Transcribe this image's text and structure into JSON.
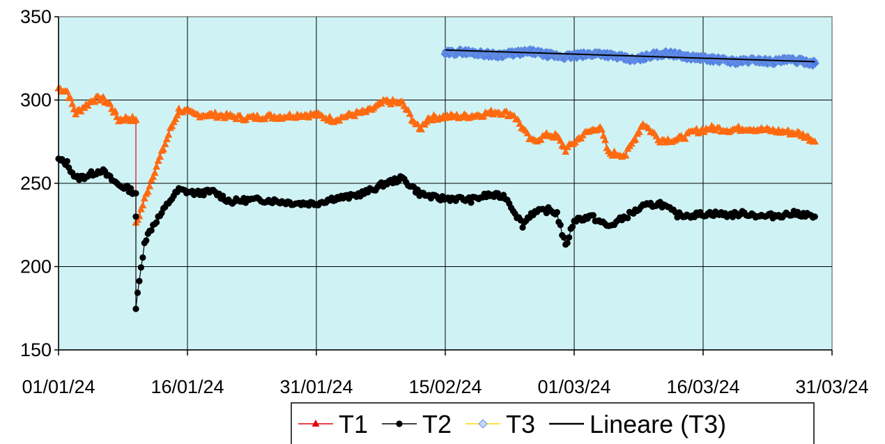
{
  "chart_data": {
    "type": "line",
    "title": "",
    "xlabel": "",
    "ylabel": "",
    "ylim": [
      150,
      350
    ],
    "yticks": [
      150,
      200,
      250,
      300,
      350
    ],
    "x_range": [
      "01/01/24",
      "31/03/24"
    ],
    "xticks": [
      "01/01/24",
      "16/01/24",
      "31/01/24",
      "15/02/24",
      "01/03/24",
      "16/03/24",
      "31/03/24"
    ],
    "grid": true,
    "plot_background": "#cff3f4",
    "legend_position": "bottom",
    "series": [
      {
        "name": "T1",
        "color": "#ff6a10",
        "line_color": "#e8000b",
        "marker": "triangle",
        "x": [
          "01/01/24",
          "02/01/24",
          "03/01/24",
          "04/01/24",
          "05/01/24",
          "06/01/24",
          "07/01/24",
          "08/01/24",
          "09/01/24",
          "10/01/24",
          "10/01/24",
          "10/01/24",
          "11/01/24",
          "12/01/24",
          "13/01/24",
          "14/01/24",
          "15/01/24",
          "17/01/24",
          "19/01/24",
          "21/01/24",
          "23/01/24",
          "25/01/24",
          "27/01/24",
          "29/01/24",
          "31/01/24",
          "02/02/24",
          "04/02/24",
          "06/02/24",
          "08/02/24",
          "10/02/24",
          "12/02/24",
          "13/02/24",
          "15/02/24",
          "17/02/24",
          "19/02/24",
          "21/02/24",
          "23/02/24",
          "25/02/24",
          "27/02/24",
          "28/02/24",
          "29/02/24",
          "02/03/24",
          "04/03/24",
          "05/03/24",
          "07/03/24",
          "09/03/24",
          "11/03/24",
          "13/03/24",
          "15/03/24",
          "17/03/24",
          "19/03/24",
          "21/03/24",
          "23/03/24",
          "25/03/24",
          "27/03/24",
          "28/03/24",
          "29/03/24"
        ],
        "y": [
          307,
          305,
          292,
          296,
          300,
          301,
          297,
          288,
          289,
          288,
          288,
          225,
          240,
          255,
          268,
          282,
          294,
          291,
          291,
          290,
          289,
          290,
          290,
          291,
          291,
          288,
          291,
          293,
          299,
          298,
          282,
          289,
          290,
          290,
          291,
          293,
          291,
          275,
          279,
          278,
          270,
          279,
          284,
          268,
          267,
          286,
          276,
          276,
          281,
          283,
          282,
          283,
          282,
          281,
          280,
          278,
          275
        ]
      },
      {
        "name": "T2",
        "color": "#000000",
        "line_color": "#000000",
        "marker": "dot",
        "x": [
          "01/01/24",
          "02/01/24",
          "03/01/24",
          "04/01/24",
          "05/01/24",
          "06/01/24",
          "07/01/24",
          "08/01/24",
          "09/01/24",
          "10/01/24",
          "10/01/24",
          "10/01/24",
          "11/01/24",
          "12/01/24",
          "13/01/24",
          "14/01/24",
          "15/01/24",
          "17/01/24",
          "19/01/24",
          "21/01/24",
          "23/01/24",
          "25/01/24",
          "27/01/24",
          "29/01/24",
          "31/01/24",
          "02/02/24",
          "04/02/24",
          "06/02/24",
          "08/02/24",
          "10/02/24",
          "12/02/24",
          "14/02/24",
          "16/02/24",
          "18/02/24",
          "20/02/24",
          "22/02/24",
          "24/02/24",
          "25/02/24",
          "27/02/24",
          "28/02/24",
          "29/02/24",
          "01/03/24",
          "03/03/24",
          "05/03/24",
          "07/03/24",
          "09/03/24",
          "11/03/24",
          "13/03/24",
          "15/03/24",
          "17/03/24",
          "19/03/24",
          "21/03/24",
          "23/03/24",
          "25/03/24",
          "27/03/24",
          "29/03/24"
        ],
        "y": [
          264,
          262,
          253,
          254,
          256,
          258,
          253,
          249,
          247,
          244,
          230,
          175,
          215,
          225,
          232,
          240,
          246,
          244,
          245,
          239,
          240,
          240,
          239,
          238,
          238,
          241,
          242,
          245,
          250,
          253,
          244,
          241,
          241,
          240,
          243,
          242,
          225,
          232,
          234,
          232,
          212,
          228,
          230,
          224,
          230,
          236,
          238,
          231,
          231,
          232,
          231,
          232,
          230,
          231,
          232,
          230
        ]
      },
      {
        "name": "T3",
        "color": "#4b7fe8",
        "line_color": "#ffd700",
        "marker": "diamond",
        "x": [
          "15/02/24",
          "17/02/24",
          "19/02/24",
          "21/02/24",
          "23/02/24",
          "25/02/24",
          "27/02/24",
          "29/02/24",
          "02/03/24",
          "04/03/24",
          "06/03/24",
          "08/03/24",
          "10/03/24",
          "12/03/24",
          "14/03/24",
          "16/03/24",
          "18/03/24",
          "20/03/24",
          "22/03/24",
          "24/03/24",
          "26/03/24",
          "28/03/24",
          "29/03/24"
        ],
        "y": [
          328,
          329,
          328,
          327,
          328,
          329,
          327,
          326,
          327,
          328,
          326,
          324,
          327,
          328,
          326,
          325,
          324,
          323,
          324,
          323,
          324,
          323,
          322
        ]
      },
      {
        "name": "Lineare (T3)",
        "color": "#000000",
        "type": "trendline",
        "x": [
          "15/02/24",
          "29/03/24"
        ],
        "y": [
          330,
          323
        ]
      }
    ]
  }
}
